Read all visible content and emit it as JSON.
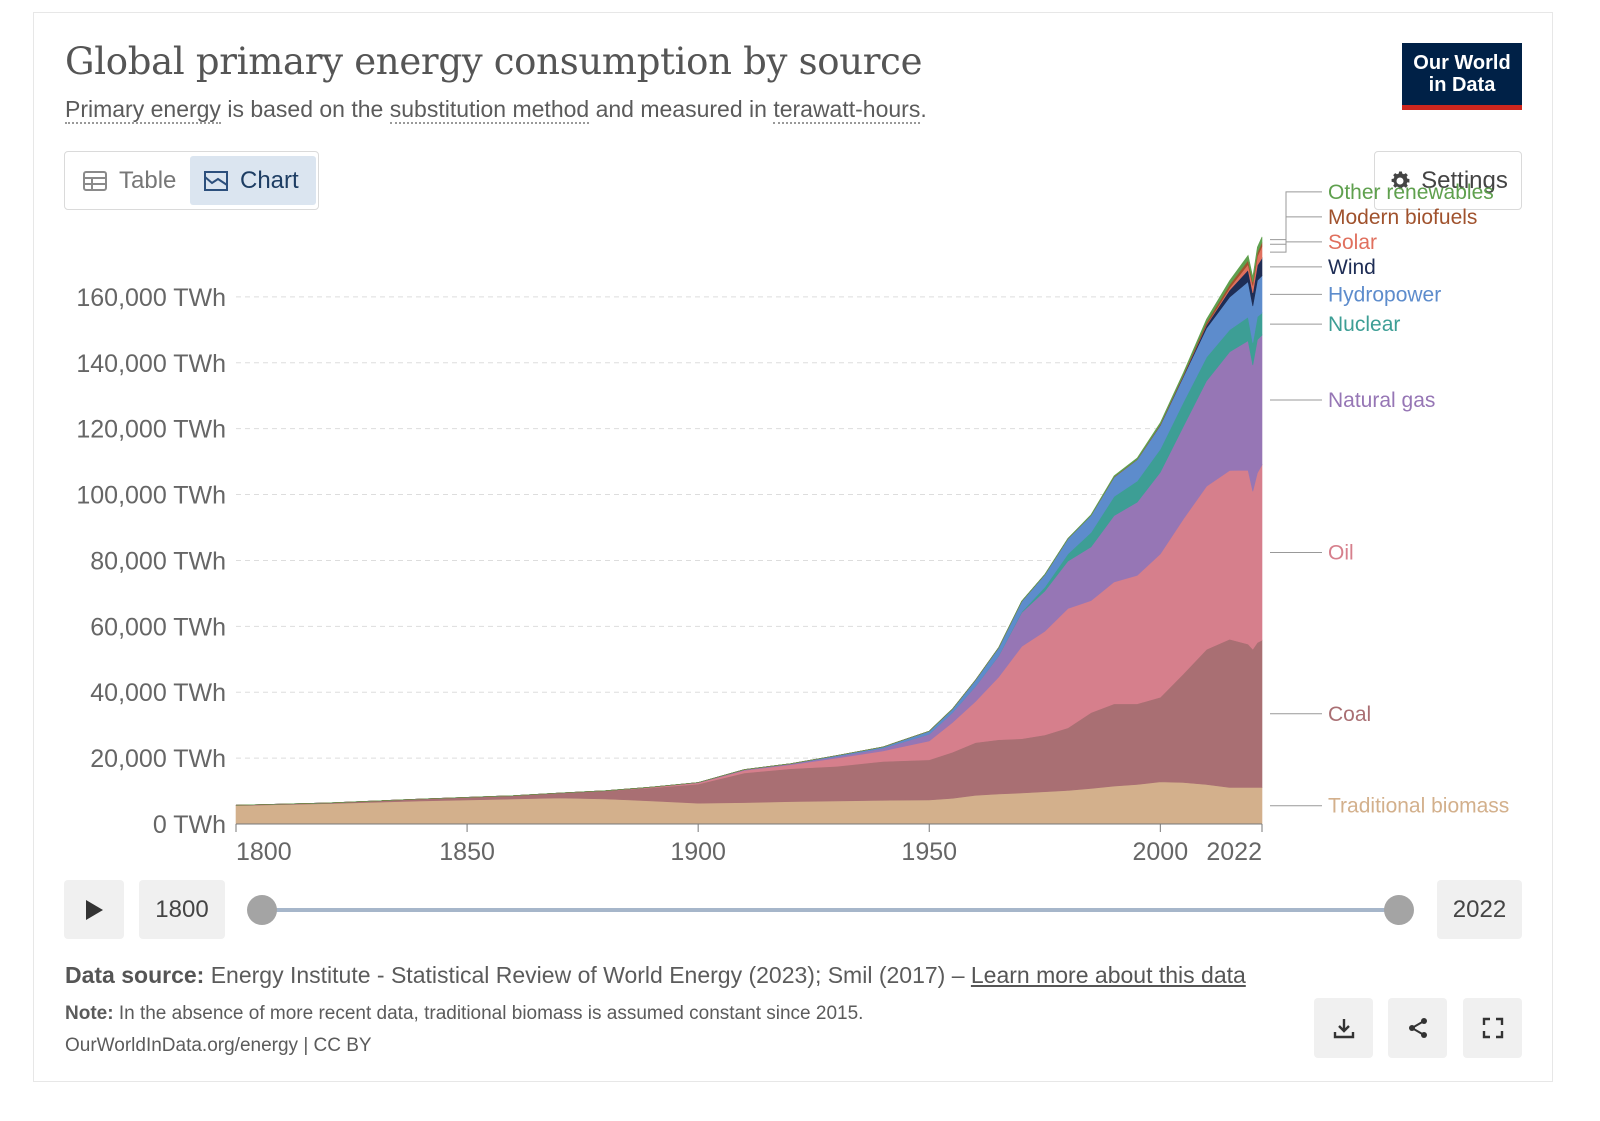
{
  "header": {
    "title": "Global primary energy consumption by source",
    "subtitle": {
      "link1": "Primary energy",
      "text1": " is based on the ",
      "link2": "substitution method",
      "text2": " and measured in ",
      "link3": "terawatt-hours",
      "text3": "."
    },
    "logo_line1": "Our World",
    "logo_line2": "in Data"
  },
  "tabs": {
    "table_label": "Table",
    "chart_label": "Chart",
    "active": "Chart"
  },
  "settings_label": "Settings",
  "colors": {
    "traditional_biomass": "#d3b08c",
    "coal": "#a96f73",
    "oil": "#d67f8c",
    "natural_gas": "#9676b5",
    "nuclear": "#3d9e95",
    "hydropower": "#5d8ccc",
    "wind": "#1e2d55",
    "solar": "#e0705e",
    "modern_biofuels": "#a0522d",
    "other_renewables": "#5fa04e",
    "logo_bg": "#002147",
    "logo_stripe": "#ce261e"
  },
  "chart_data": {
    "type": "area",
    "stacked": true,
    "xlim": [
      1800,
      2022
    ],
    "ylim": [
      0,
      180000
    ],
    "x_ticks": [
      "1800",
      "1850",
      "1900",
      "1950",
      "2000",
      "2022"
    ],
    "y_ticks": [
      "0 TWh",
      "20,000 TWh",
      "40,000 TWh",
      "60,000 TWh",
      "80,000 TWh",
      "100,000 TWh",
      "120,000 TWh",
      "140,000 TWh",
      "160,000 TWh"
    ],
    "y_tick_values": [
      0,
      20000,
      40000,
      60000,
      80000,
      100000,
      120000,
      140000,
      160000
    ],
    "grid": "horizontal dashed",
    "legend": "right, line-labels",
    "x": [
      1800,
      1820,
      1840,
      1860,
      1870,
      1880,
      1890,
      1900,
      1910,
      1920,
      1930,
      1940,
      1950,
      1955,
      1960,
      1965,
      1970,
      1975,
      1980,
      1985,
      1990,
      1995,
      2000,
      2005,
      2010,
      2015,
      2019,
      2020,
      2021,
      2022
    ],
    "series": [
      {
        "name": "Traditional biomass",
        "color": "#d3b08c",
        "values": [
          5600,
          6200,
          7000,
          7600,
          7900,
          7600,
          7000,
          6300,
          6500,
          6800,
          7000,
          7200,
          7300,
          7800,
          8700,
          9100,
          9400,
          9800,
          10200,
          10800,
          11500,
          12000,
          12800,
          12600,
          12000,
          11100,
          11100,
          11100,
          11100,
          11100
        ]
      },
      {
        "name": "Coal",
        "color": "#a96f73",
        "values": [
          100,
          200,
          600,
          1000,
          1500,
          2500,
          4000,
          5800,
          9000,
          10000,
          10500,
          11800,
          12200,
          14000,
          16000,
          16500,
          16500,
          17200,
          19000,
          23000,
          25000,
          24500,
          25700,
          33000,
          41000,
          45000,
          43500,
          42000,
          44000,
          44700
        ]
      },
      {
        "name": "Oil",
        "color": "#d67f8c",
        "values": [
          0,
          0,
          0,
          0,
          0,
          0,
          200,
          400,
          800,
          1200,
          2500,
          3200,
          5700,
          9000,
          12500,
          19000,
          28000,
          31500,
          36200,
          34000,
          37000,
          39000,
          43500,
          47000,
          49500,
          51200,
          52800,
          47900,
          51500,
          53200
        ]
      },
      {
        "name": "Natural gas",
        "color": "#9676b5",
        "values": [
          0,
          0,
          0,
          0,
          0,
          0,
          0,
          100,
          200,
          300,
          500,
          800,
          2100,
          3000,
          4600,
          6400,
          10300,
          12200,
          14400,
          16300,
          20100,
          22200,
          24800,
          28100,
          32000,
          36000,
          39300,
          38300,
          40400,
          39400
        ]
      },
      {
        "name": "Nuclear",
        "color": "#3d9e95",
        "values": [
          0,
          0,
          0,
          0,
          0,
          0,
          0,
          0,
          0,
          0,
          0,
          0,
          0,
          0,
          0,
          100,
          200,
          1200,
          2200,
          4400,
          5800,
          6400,
          7000,
          7300,
          7200,
          6700,
          7200,
          6800,
          7000,
          6700
        ]
      },
      {
        "name": "Hydropower",
        "color": "#5d8ccc",
        "values": [
          0,
          0,
          0,
          0,
          0,
          0,
          0,
          0,
          0,
          0,
          300,
          400,
          900,
          1100,
          1900,
          2400,
          3200,
          3800,
          4600,
          5200,
          5900,
          6500,
          7200,
          7800,
          8800,
          9900,
          10700,
          11100,
          11000,
          11300
        ]
      },
      {
        "name": "Wind",
        "color": "#1e2d55",
        "values": [
          0,
          0,
          0,
          0,
          0,
          0,
          0,
          0,
          0,
          0,
          0,
          0,
          0,
          0,
          0,
          0,
          0,
          0,
          0,
          0,
          0,
          0,
          100,
          300,
          900,
          2200,
          3600,
          4000,
          4600,
          5400
        ]
      },
      {
        "name": "Solar",
        "color": "#e0705e",
        "values": [
          0,
          0,
          0,
          0,
          0,
          0,
          0,
          0,
          0,
          0,
          0,
          0,
          0,
          0,
          0,
          0,
          0,
          0,
          0,
          0,
          0,
          0,
          0,
          0,
          100,
          600,
          1700,
          2200,
          2700,
          3600
        ]
      },
      {
        "name": "Modern biofuels",
        "color": "#a0522d",
        "values": [
          0,
          0,
          0,
          0,
          0,
          0,
          0,
          0,
          0,
          0,
          0,
          0,
          0,
          0,
          0,
          0,
          0,
          0,
          0,
          0,
          100,
          100,
          200,
          300,
          800,
          1000,
          1200,
          1100,
          1200,
          1200
        ]
      },
      {
        "name": "Other renewables",
        "color": "#5fa04e",
        "values": [
          0,
          0,
          0,
          0,
          0,
          0,
          0,
          0,
          0,
          0,
          0,
          0,
          0,
          0,
          0,
          0,
          100,
          100,
          100,
          200,
          300,
          400,
          500,
          600,
          900,
          1200,
          1500,
          1500,
          1600,
          1600
        ]
      }
    ]
  },
  "timeline": {
    "start_year": "1800",
    "end_year": "2022"
  },
  "footer": {
    "source_label": "Data source:",
    "source_text": " Energy Institute - Statistical Review of World Energy (2023); Smil (2017) – ",
    "source_link": "Learn more about this data",
    "note_label": "Note:",
    "note_text": " In the absence of more recent data, traditional biomass is assumed constant since 2015.",
    "credit": "OurWorldInData.org/energy | CC BY"
  }
}
